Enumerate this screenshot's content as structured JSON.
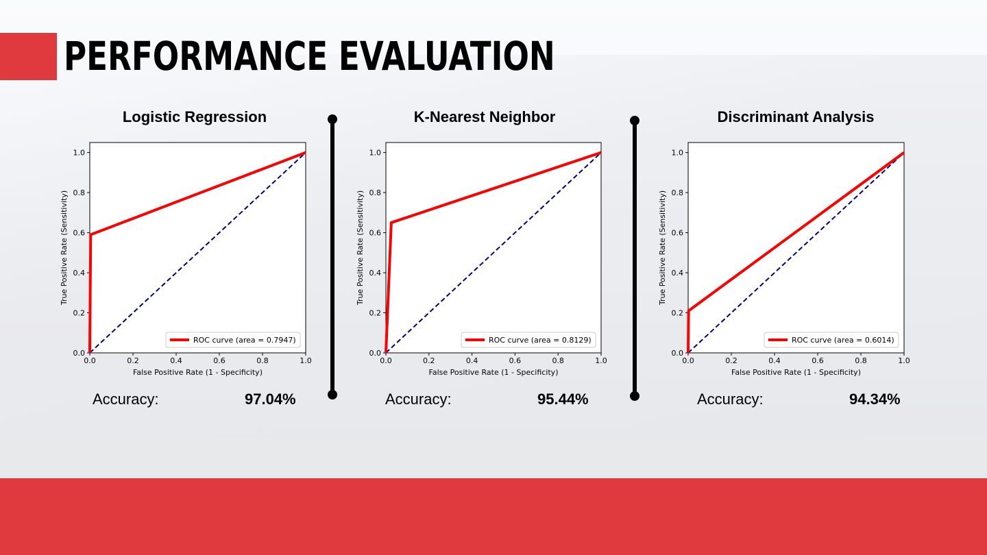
{
  "slide": {
    "title": "PERFORMANCE EVALUATION",
    "colors": {
      "accent": "#e03a3f",
      "roc": "#ff0000",
      "diagonal": "#000080"
    }
  },
  "chart_data": [
    {
      "type": "line",
      "title": "Logistic Regression",
      "xlabel": "False Positive Rate (1 - Specificity)",
      "ylabel": "True Positive Rate (Sensitivity)",
      "xlim": [
        0,
        1
      ],
      "ylim": [
        0,
        1.05
      ],
      "xticks": [
        "0.0",
        "0.2",
        "0.4",
        "0.6",
        "0.8",
        "1.0"
      ],
      "yticks": [
        "0.0",
        "0.2",
        "0.4",
        "0.6",
        "0.8",
        "1.0"
      ],
      "legend_position": "lower-right",
      "series": [
        {
          "name": "ROC curve (area = 0.7947)",
          "x": [
            0,
            0.004,
            1
          ],
          "y": [
            0,
            0.59,
            1
          ],
          "color": "#ff0000",
          "style": "solid"
        },
        {
          "x": [
            0,
            1
          ],
          "y": [
            0,
            1
          ],
          "color": "#000080",
          "style": "dashed"
        }
      ],
      "accuracy_label": "Accuracy:",
      "accuracy_value": "97.04%"
    },
    {
      "type": "line",
      "title": "K-Nearest Neighbor",
      "xlabel": "False Positive Rate (1 - Specificity)",
      "ylabel": "True Positive Rate (Sensitivity)",
      "xlim": [
        0,
        1
      ],
      "ylim": [
        0,
        1.05
      ],
      "xticks": [
        "0.0",
        "0.2",
        "0.4",
        "0.6",
        "0.8",
        "1.0"
      ],
      "yticks": [
        "0.0",
        "0.2",
        "0.4",
        "0.6",
        "0.8",
        "1.0"
      ],
      "legend_position": "lower-right",
      "series": [
        {
          "name": "ROC curve (area = 0.8129)",
          "x": [
            0,
            0.025,
            1
          ],
          "y": [
            0,
            0.65,
            1
          ],
          "color": "#ff0000",
          "style": "solid"
        },
        {
          "x": [
            0,
            1
          ],
          "y": [
            0,
            1
          ],
          "color": "#000080",
          "style": "dashed"
        }
      ],
      "accuracy_label": "Accuracy:",
      "accuracy_value": "95.44%"
    },
    {
      "type": "line",
      "title": "Discriminant Analysis",
      "xlabel": "False Positive Rate (1 - Specificity)",
      "ylabel": "True Positive Rate (Sensitivity)",
      "xlim": [
        0,
        1
      ],
      "ylim": [
        0,
        1.05
      ],
      "xticks": [
        "0.0",
        "0.2",
        "0.4",
        "0.6",
        "0.8",
        "1.0"
      ],
      "yticks": [
        "0.0",
        "0.2",
        "0.4",
        "0.6",
        "0.8",
        "1.0"
      ],
      "legend_position": "lower-right",
      "series": [
        {
          "name": "ROC curve (area = 0.6014)",
          "x": [
            0,
            0.002,
            1
          ],
          "y": [
            0,
            0.21,
            1
          ],
          "color": "#ff0000",
          "style": "solid"
        },
        {
          "x": [
            0,
            1
          ],
          "y": [
            0,
            1
          ],
          "color": "#000080",
          "style": "dashed"
        }
      ],
      "accuracy_label": "Accuracy:",
      "accuracy_value": "94.34%"
    }
  ]
}
